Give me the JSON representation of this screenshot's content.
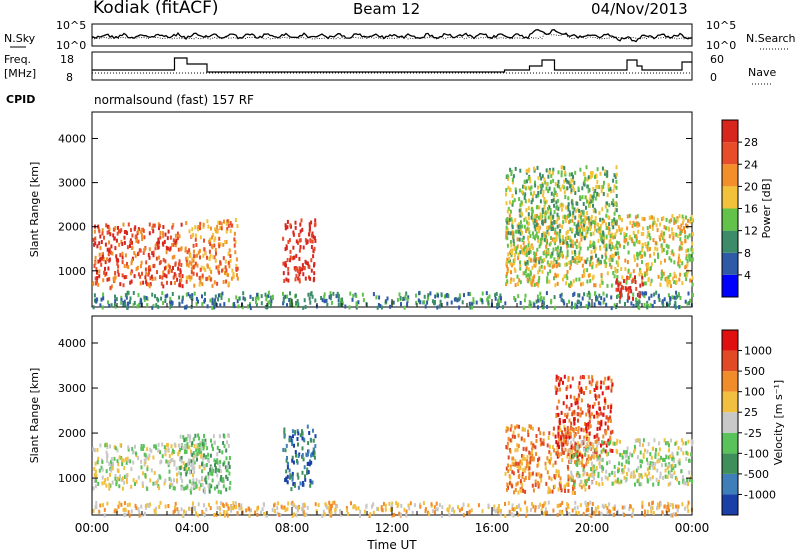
{
  "header": {
    "station": "Kodiak (fitACF)",
    "beam": "Beam 12",
    "date": "04/Nov/2013"
  },
  "panels": {
    "nsky": {
      "label": "N.Sky",
      "ticks": [
        "10^5",
        "10^0"
      ],
      "right_label": "N.Search",
      "right_ticks": [
        "10^5",
        "10^0"
      ]
    },
    "freq": {
      "label_line1": "Freq.",
      "label_line2": "[MHz]",
      "ticks": [
        18,
        8
      ],
      "right_label": "Nave",
      "right_ticks": [
        60,
        0
      ]
    },
    "cpid": {
      "label": "CPID",
      "text": "normalsound (fast) 157 RF"
    }
  },
  "chart_data": [
    {
      "type": "heatmap",
      "name": "power",
      "ylabel": "Slant Range [km]",
      "yticks": [
        1000,
        2000,
        3000,
        4000
      ],
      "ylim": [
        180,
        4600
      ],
      "xlim": [
        0,
        24
      ],
      "colorbar": {
        "label": "Power [dB]",
        "ticks": [
          4,
          8,
          12,
          16,
          20,
          24,
          28
        ],
        "colors": [
          "#0000ff",
          "#2f5aa6",
          "#3c8c6a",
          "#62c24a",
          "#f2c33a",
          "#f28f2a",
          "#e74c2b",
          "#d7261e"
        ]
      },
      "blobs": [
        {
          "t": [
            0.0,
            3.6
          ],
          "r": [
            650,
            2100
          ],
          "level": 6
        },
        {
          "t": [
            3.7,
            5.8
          ],
          "r": [
            700,
            2200
          ],
          "level": 5
        },
        {
          "t": [
            7.6,
            8.9
          ],
          "r": [
            800,
            2200
          ],
          "level": 7
        },
        {
          "t": [
            0.0,
            24.0
          ],
          "r": [
            200,
            550
          ],
          "level": 2
        },
        {
          "t": [
            16.5,
            24.0
          ],
          "r": [
            700,
            2300
          ],
          "level": 4
        },
        {
          "t": [
            16.5,
            21.0
          ],
          "r": [
            1200,
            3400
          ],
          "level": 3
        },
        {
          "t": [
            20.8,
            22.0
          ],
          "r": [
            400,
            900
          ],
          "level": 7
        }
      ]
    },
    {
      "type": "heatmap",
      "name": "velocity",
      "ylabel": "Slant Range [km]",
      "yticks": [
        1000,
        2000,
        3000,
        4000
      ],
      "ylim": [
        180,
        4600
      ],
      "xlim": [
        0,
        24
      ],
      "colorbar": {
        "label": "Velocity [m s⁻¹]",
        "ticks": [
          "1000",
          "500",
          "100",
          "25",
          "-25",
          "-100",
          "-500",
          "-1000"
        ],
        "colors": [
          "#1a3fa6",
          "#3e7fba",
          "#3f8f5a",
          "#5ac25a",
          "#c8c8c8",
          "#f2c040",
          "#f08c2a",
          "#e04a26",
          "#e01010"
        ]
      },
      "blobs": [
        {
          "t": [
            0.0,
            4.5
          ],
          "r": [
            800,
            1800
          ],
          "level": 4
        },
        {
          "t": [
            3.5,
            5.5
          ],
          "r": [
            700,
            2000
          ],
          "level": 3
        },
        {
          "t": [
            7.6,
            8.9
          ],
          "r": [
            800,
            2200
          ],
          "level": 1
        },
        {
          "t": [
            0.0,
            24.0
          ],
          "r": [
            200,
            500
          ],
          "level": 5
        },
        {
          "t": [
            16.5,
            20.0
          ],
          "r": [
            700,
            2200
          ],
          "level": 6
        },
        {
          "t": [
            18.5,
            20.8
          ],
          "r": [
            1500,
            3300
          ],
          "level": 7
        },
        {
          "t": [
            19.0,
            24.0
          ],
          "r": [
            900,
            1900
          ],
          "level": 4
        }
      ]
    }
  ],
  "xaxis": {
    "label": "Time UT",
    "ticks": [
      "00:00",
      "04:00",
      "08:00",
      "12:00",
      "16:00",
      "20:00",
      "00:00"
    ]
  }
}
